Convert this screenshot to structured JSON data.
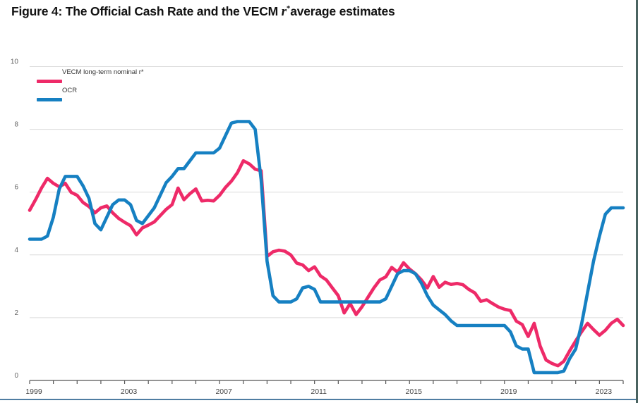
{
  "figure": {
    "title_prefix": "Figure 4: The Official Cash Rate and the VECM ",
    "title_math": "r",
    "title_sup": "*",
    "title_suffix": "average estimates"
  },
  "legend": [
    {
      "label": "VECM long-term nominal r*",
      "color": "#ee2a68"
    },
    {
      "label": "OCR",
      "color": "#1680c2"
    }
  ],
  "colors": {
    "vecm_line": "#ee2a68",
    "ocr_line": "#1680c2",
    "gridline": "#dcdcdc",
    "axis_line": "#555555",
    "tick_label": "#444444",
    "y_label": "#666666",
    "border_right": "#4a6360",
    "border_bottom": "#4f7da2"
  },
  "chart_data": {
    "type": "line",
    "x_frequency": "quarterly",
    "x_start_year": 1999,
    "x_end_year": 2024,
    "x_tick_years": [
      1999,
      2000,
      2001,
      2002,
      2003,
      2004,
      2005,
      2006,
      2007,
      2008,
      2009,
      2010,
      2011,
      2012,
      2013,
      2014,
      2015,
      2016,
      2017,
      2018,
      2019,
      2020,
      2021,
      2022,
      2023,
      2024
    ],
    "x_label_years": [
      1999,
      2003,
      2007,
      2011,
      2015,
      2019,
      2023
    ],
    "y_ticks": [
      0,
      2,
      4,
      6,
      8,
      10
    ],
    "ylim": [
      0,
      10
    ],
    "grid": "horizontal-only",
    "legend_position": "top-left",
    "series": [
      {
        "name": "VECM long-term nominal r*",
        "color": "#ee2a68",
        "values": [
          5.42,
          5.76,
          6.13,
          6.44,
          6.28,
          6.17,
          6.28,
          5.99,
          5.9,
          5.67,
          5.54,
          5.34,
          5.5,
          5.56,
          5.34,
          5.16,
          5.04,
          4.93,
          4.64,
          4.86,
          4.95,
          5.05,
          5.25,
          5.45,
          5.6,
          6.13,
          5.76,
          5.95,
          6.1,
          5.72,
          5.74,
          5.72,
          5.9,
          6.15,
          6.35,
          6.62,
          7.0,
          6.9,
          6.73,
          6.68,
          3.95,
          4.1,
          4.15,
          4.12,
          4.0,
          3.74,
          3.68,
          3.5,
          3.62,
          3.33,
          3.2,
          2.95,
          2.7,
          2.15,
          2.45,
          2.1,
          2.35,
          2.65,
          2.95,
          3.2,
          3.3,
          3.6,
          3.45,
          3.75,
          3.55,
          3.4,
          3.2,
          2.95,
          3.31,
          2.97,
          3.13,
          3.06,
          3.09,
          3.05,
          2.9,
          2.79,
          2.52,
          2.57,
          2.45,
          2.34,
          2.27,
          2.23,
          1.89,
          1.78,
          1.4,
          1.82,
          1.1,
          0.65,
          0.54,
          0.47,
          0.61,
          0.95,
          1.26,
          1.55,
          1.82,
          1.62,
          1.44,
          1.6,
          1.82,
          1.95,
          1.75
        ]
      },
      {
        "name": "OCR",
        "color": "#1680c2",
        "values": [
          4.5,
          4.5,
          4.5,
          4.6,
          5.2,
          6.1,
          6.5,
          6.5,
          6.5,
          6.2,
          5.8,
          5.0,
          4.8,
          5.2,
          5.6,
          5.75,
          5.75,
          5.6,
          5.1,
          5.0,
          5.25,
          5.5,
          5.9,
          6.3,
          6.5,
          6.75,
          6.75,
          7.0,
          7.25,
          7.25,
          7.25,
          7.25,
          7.4,
          7.8,
          8.2,
          8.25,
          8.25,
          8.25,
          8.0,
          6.4,
          3.8,
          2.7,
          2.5,
          2.5,
          2.5,
          2.6,
          2.95,
          3.0,
          2.9,
          2.5,
          2.5,
          2.5,
          2.5,
          2.5,
          2.5,
          2.5,
          2.5,
          2.5,
          2.5,
          2.5,
          2.6,
          3.0,
          3.4,
          3.5,
          3.5,
          3.4,
          3.1,
          2.7,
          2.4,
          2.25,
          2.1,
          1.9,
          1.75,
          1.75,
          1.75,
          1.75,
          1.75,
          1.75,
          1.75,
          1.75,
          1.75,
          1.55,
          1.1,
          1.0,
          1.0,
          0.25,
          0.25,
          0.25,
          0.25,
          0.25,
          0.3,
          0.7,
          1.0,
          1.8,
          2.8,
          3.8,
          4.6,
          5.3,
          5.5,
          5.5,
          5.5
        ]
      }
    ]
  }
}
